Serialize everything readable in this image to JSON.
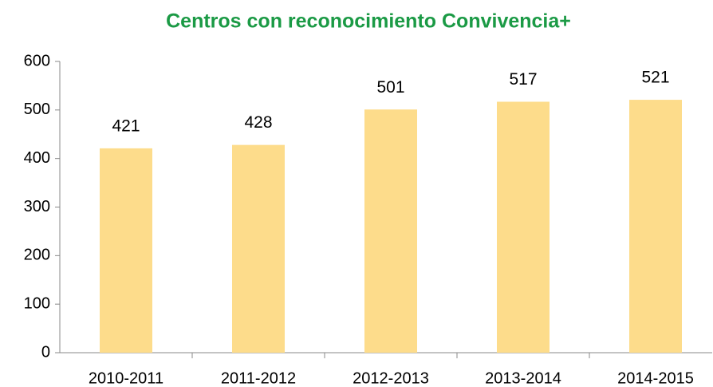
{
  "chart_data": {
    "type": "bar",
    "title": "Centros con reconocimiento Convivencia+",
    "categories": [
      "2010-2011",
      "2011-2012",
      "2012-2013",
      "2013-2014",
      "2014-2015"
    ],
    "values": [
      421,
      428,
      501,
      517,
      521
    ],
    "color": "#fddc8b",
    "ylim": [
      0,
      600
    ],
    "yticks": [
      0,
      100,
      200,
      300,
      400,
      500,
      600
    ],
    "grid": false
  }
}
